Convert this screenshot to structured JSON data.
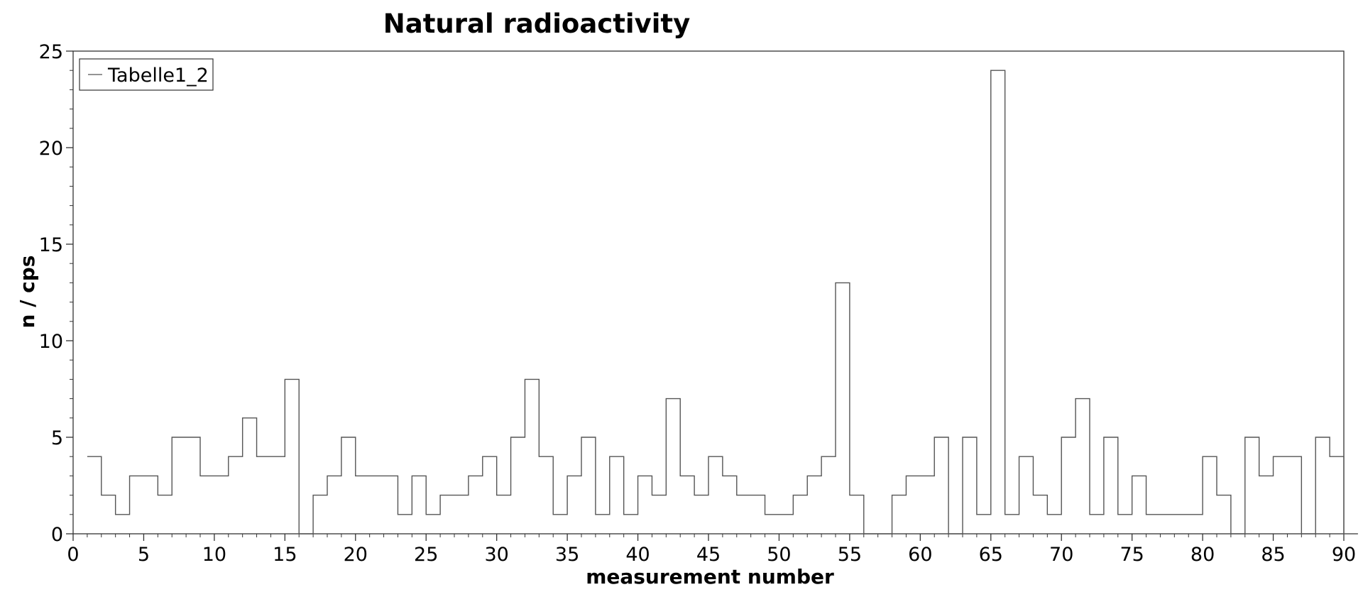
{
  "chart_data": {
    "type": "line",
    "title": "Natural radioactivity",
    "xlabel": "measurement number",
    "ylabel": "n / cps",
    "xlim": [
      0,
      90
    ],
    "ylim": [
      0,
      25
    ],
    "x_ticks": [
      0,
      5,
      10,
      15,
      20,
      25,
      30,
      35,
      40,
      45,
      50,
      55,
      60,
      65,
      70,
      75,
      80,
      85,
      90
    ],
    "x_tick_labels": [
      "0",
      "5",
      "10",
      "15",
      "20",
      "25",
      "30",
      "35",
      "40",
      "45",
      "50",
      "55",
      "60",
      "65",
      "70",
      "75",
      "80",
      "85",
      "90"
    ],
    "y_ticks": [
      0,
      5,
      10,
      15,
      20,
      25
    ],
    "y_tick_labels": [
      "0",
      "5",
      "10",
      "15",
      "20",
      "25"
    ],
    "grid": false,
    "step": true,
    "legend_position": "top-left",
    "line_color": "#555555",
    "series": [
      {
        "name": "Tabelle1_2",
        "x": [
          1,
          2,
          3,
          4,
          5,
          6,
          7,
          8,
          9,
          10,
          11,
          12,
          13,
          14,
          15,
          16,
          17,
          18,
          19,
          20,
          21,
          22,
          23,
          24,
          25,
          26,
          27,
          28,
          29,
          30,
          31,
          32,
          33,
          34,
          35,
          36,
          37,
          38,
          39,
          40,
          41,
          42,
          43,
          44,
          45,
          46,
          47,
          48,
          49,
          50,
          51,
          52,
          53,
          54,
          55,
          56,
          57,
          58,
          59,
          60,
          61,
          62,
          63,
          64,
          65,
          66,
          67,
          68,
          69,
          70,
          71,
          72,
          73,
          74,
          75,
          76,
          77,
          78,
          79,
          80,
          81,
          82,
          83,
          84,
          85,
          86,
          87,
          88,
          89,
          90
        ],
        "values": [
          4,
          2,
          1,
          3,
          3,
          2,
          5,
          5,
          3,
          3,
          4,
          6,
          4,
          4,
          8,
          0,
          2,
          3,
          5,
          3,
          3,
          3,
          1,
          3,
          1,
          2,
          2,
          3,
          4,
          2,
          5,
          8,
          4,
          1,
          3,
          5,
          1,
          4,
          1,
          3,
          2,
          7,
          3,
          2,
          4,
          3,
          2,
          2,
          1,
          1,
          2,
          3,
          4,
          13,
          2,
          0,
          0,
          2,
          3,
          3,
          5,
          0,
          5,
          1,
          24,
          1,
          4,
          2,
          1,
          5,
          7,
          1,
          5,
          1,
          3,
          1,
          1,
          1,
          1,
          4,
          2,
          0,
          5,
          3,
          4,
          4,
          0,
          5,
          4,
          0
        ]
      }
    ]
  }
}
